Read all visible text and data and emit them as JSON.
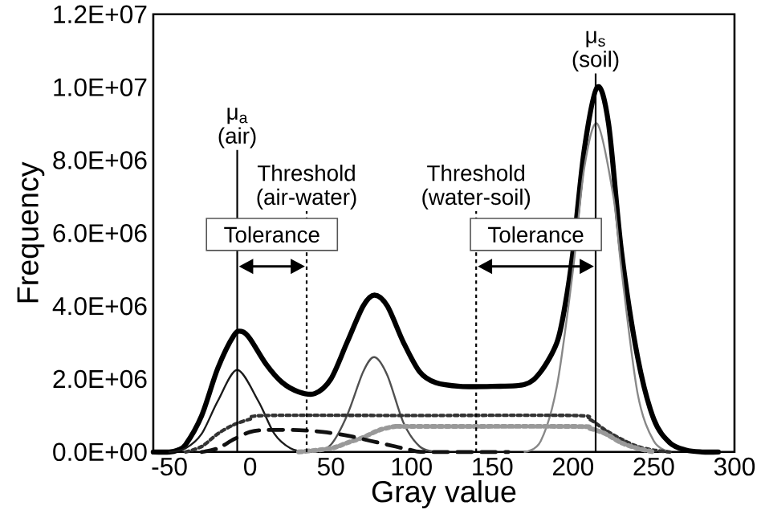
{
  "chart_data": {
    "type": "line",
    "xlabel": "Gray value",
    "ylabel": "Frequency",
    "xlim": [
      -60,
      300
    ],
    "ylim": [
      0,
      12000000
    ],
    "xticks": [
      -50,
      0,
      50,
      100,
      150,
      200,
      250,
      300
    ],
    "yticks": [
      {
        "value": 0,
        "label": "0.0E+00"
      },
      {
        "value": 2000000,
        "label": "2.0E+06"
      },
      {
        "value": 4000000,
        "label": "4.0E+06"
      },
      {
        "value": 6000000,
        "label": "6.0E+06"
      },
      {
        "value": 8000000,
        "label": "8.0E+06"
      },
      {
        "value": 10000000,
        "label": "1.0E+07"
      },
      {
        "value": 12000000,
        "label": "1.2E+07"
      }
    ],
    "grid": false,
    "marker": "none",
    "series": [
      {
        "color": "#000000",
        "line_style": "solid",
        "x": [
          -60,
          -50,
          -45,
          -40,
          -30,
          -20,
          -10,
          -5,
          0,
          10,
          20,
          30,
          40,
          50,
          60,
          70,
          77,
          85,
          95,
          105,
          115,
          130,
          150,
          170,
          180,
          190,
          195,
          200,
          207,
          215,
          222,
          230,
          240,
          250,
          260,
          270,
          280,
          290
        ],
        "values": [
          0,
          0,
          50000,
          200000,
          1000000,
          2300000,
          3200000,
          3300000,
          3100000,
          2400000,
          1900000,
          1650000,
          1600000,
          2000000,
          3000000,
          4000000,
          4300000,
          4000000,
          3000000,
          2200000,
          1900000,
          1800000,
          1800000,
          1850000,
          2200000,
          3000000,
          4000000,
          5500000,
          8300000,
          10000000,
          9000000,
          5500000,
          2600000,
          900000,
          250000,
          50000,
          0,
          0
        ]
      },
      {
        "color": "#1a1a1a",
        "line_style": "solid",
        "x": [
          -50,
          -40,
          -30,
          -20,
          -8,
          5,
          15,
          25,
          35
        ],
        "values": [
          0,
          100000,
          500000,
          1400000,
          2250000,
          1400000,
          500000,
          100000,
          0
        ]
      },
      {
        "color": "#505050",
        "line_style": "solid",
        "x": [
          40,
          50,
          60,
          70,
          77,
          85,
          95,
          105,
          115
        ],
        "values": [
          0,
          200000,
          1000000,
          2200000,
          2600000,
          2100000,
          800000,
          150000,
          0
        ]
      },
      {
        "color": "#888888",
        "line_style": "solid",
        "x": [
          170,
          180,
          190,
          200,
          207,
          215,
          225,
          230,
          240,
          250,
          260
        ],
        "values": [
          0,
          300000,
          1800000,
          5000000,
          7800000,
          9000000,
          7000000,
          5000000,
          1600000,
          300000,
          0
        ]
      },
      {
        "color": "#333333",
        "line_style": "dotted",
        "x": [
          -40,
          -30,
          -20,
          -10,
          0,
          10,
          100,
          200,
          210,
          220,
          230,
          240,
          250,
          260
        ],
        "values": [
          0,
          150000,
          500000,
          750000,
          900000,
          1000000,
          1000000,
          1000000,
          900000,
          600000,
          350000,
          150000,
          50000,
          0
        ]
      },
      {
        "color": "#999999",
        "line_style": "dotted",
        "x": [
          30,
          50,
          60,
          70,
          80,
          90,
          100,
          200,
          210,
          220,
          230,
          240,
          250
        ],
        "values": [
          0,
          100000,
          250000,
          400000,
          600000,
          700000,
          700000,
          700000,
          650000,
          500000,
          250000,
          100000,
          0
        ]
      },
      {
        "color": "#111111",
        "line_style": "dashed",
        "x": [
          -30,
          -20,
          -10,
          0,
          10,
          30,
          45,
          60,
          75,
          90,
          100,
          110,
          160
        ],
        "values": [
          0,
          100000,
          350000,
          550000,
          600000,
          600000,
          550000,
          450000,
          300000,
          150000,
          50000,
          0,
          0
        ]
      }
    ],
    "ref_lines": [
      {
        "axis": "x",
        "value": -8,
        "label": "μ$_{a}$ (air)",
        "line_style": "solid",
        "color": "#000000"
      },
      {
        "axis": "x",
        "value": 35,
        "label": "Threshold (air-water)",
        "line_style": "dotted",
        "color": "#000000"
      },
      {
        "axis": "x",
        "value": 140,
        "label": "Threshold (water-soil)",
        "line_style": "dotted",
        "color": "#000000"
      },
      {
        "axis": "x",
        "value": 214,
        "label": "μ$_{s}$ (soil)",
        "line_style": "solid",
        "color": "#000000"
      }
    ],
    "annotations": [
      "Tolerance",
      "Tolerance"
    ]
  }
}
